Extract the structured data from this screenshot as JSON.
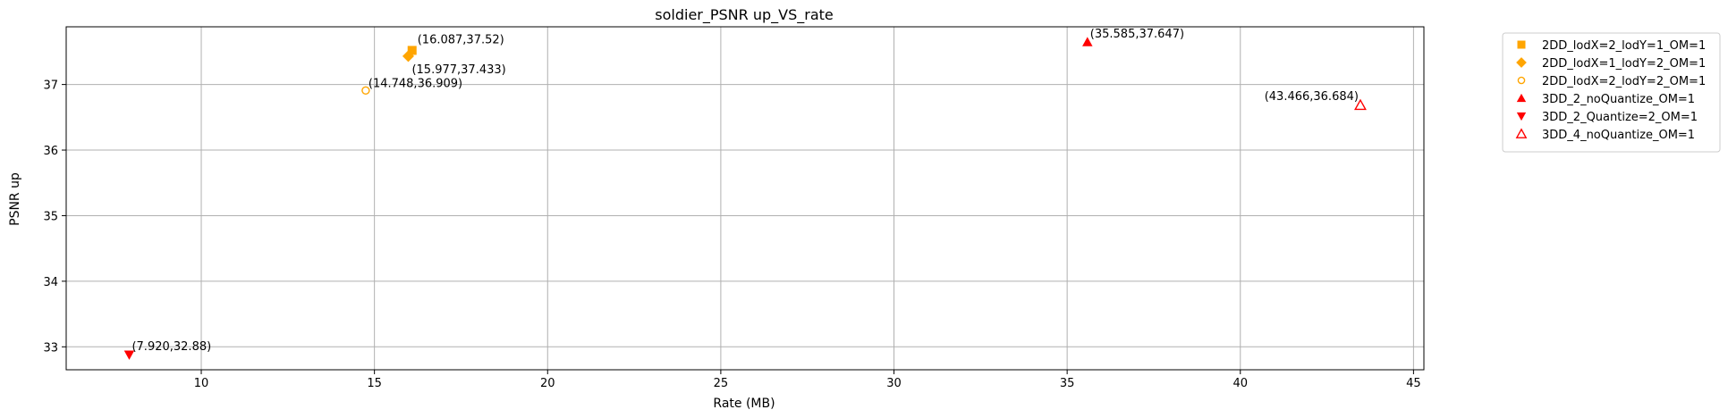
{
  "chart_data": {
    "type": "scatter",
    "title": "soldier_PSNR up_VS_rate",
    "xlabel": "Rate (MB)",
    "ylabel": "PSNR up",
    "xlim": [
      6.1,
      45.3
    ],
    "ylim": [
      32.65,
      37.88
    ],
    "xticks": [
      10,
      15,
      20,
      25,
      30,
      35,
      40,
      45
    ],
    "yticks": [
      33,
      34,
      35,
      36,
      37
    ],
    "grid": true,
    "legend_position": "outside-top-right",
    "series": [
      {
        "name": "2DD_lodX=2_lodY=1_OM=1",
        "marker": "square",
        "color": "#FFA500",
        "filled": true,
        "points": [
          {
            "x": 16.087,
            "y": 37.52,
            "label": "(16.087,37.52)"
          }
        ]
      },
      {
        "name": "2DD_lodX=1_lodY=2_OM=1",
        "marker": "diamond",
        "color": "#FFA500",
        "filled": true,
        "points": [
          {
            "x": 15.977,
            "y": 37.433,
            "label": "(15.977,37.433)"
          }
        ]
      },
      {
        "name": "2DD_lodX=2_lodY=2_OM=1",
        "marker": "circle",
        "color": "#FFA500",
        "filled": false,
        "points": [
          {
            "x": 14.748,
            "y": 36.909,
            "label": "(14.748,36.909)"
          }
        ]
      },
      {
        "name": "3DD_2_noQuantize_OM=1",
        "marker": "triangle-up",
        "color": "#FF0000",
        "filled": true,
        "points": [
          {
            "x": 35.585,
            "y": 37.647,
            "label": "(35.585,37.647)"
          }
        ]
      },
      {
        "name": "3DD_2_Quantize=2_OM=1",
        "marker": "triangle-down",
        "color": "#FF0000",
        "filled": true,
        "points": [
          {
            "x": 7.92,
            "y": 32.88,
            "label": "(7.920,32.88)"
          }
        ]
      },
      {
        "name": "3DD_4_noQuantize_OM=1",
        "marker": "triangle-up",
        "color": "#FF0000",
        "filled": false,
        "points": [
          {
            "x": 43.466,
            "y": 36.684,
            "label": "(43.466,36.684)"
          }
        ]
      }
    ]
  }
}
